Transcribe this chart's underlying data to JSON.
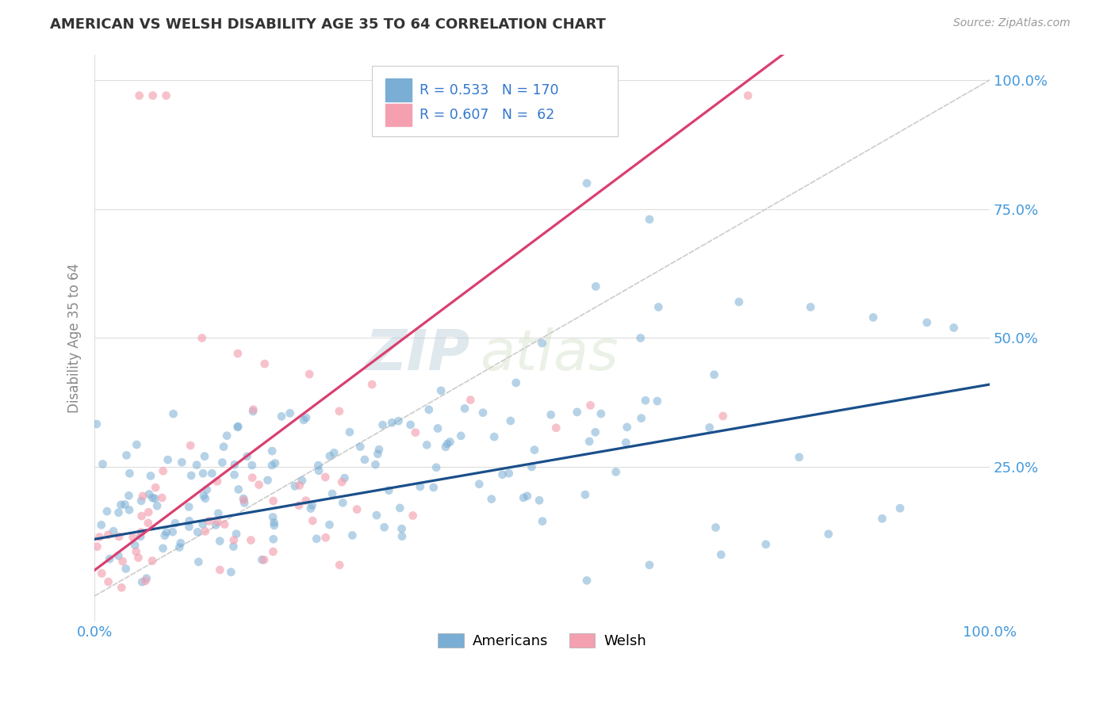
{
  "title": "AMERICAN VS WELSH DISABILITY AGE 35 TO 64 CORRELATION CHART",
  "source": "Source: ZipAtlas.com",
  "ylabel": "Disability Age 35 to 64",
  "americans_R": 0.533,
  "americans_N": 170,
  "welsh_R": 0.607,
  "welsh_N": 62,
  "x_min": 0.0,
  "x_max": 1.0,
  "y_min": -0.05,
  "y_max": 1.05,
  "american_color": "#7aaed4",
  "welsh_color": "#f4a0b0",
  "american_line_color": "#1a4f8a",
  "welsh_line_color": "#d94070",
  "diagonal_color": "#cccccc",
  "grid_color": "#dddddd",
  "title_color": "#333333",
  "tick_color": "#4499DD",
  "background_color": "#ffffff",
  "watermark_color": "#ccdde8",
  "legend_color": "#3377cc",
  "ytick_labels": [
    "100.0%",
    "75.0%",
    "50.0%",
    "25.0%"
  ],
  "ytick_values": [
    1.0,
    0.75,
    0.5,
    0.25
  ],
  "xtick_labels": [
    "0.0%",
    "100.0%"
  ],
  "xtick_values": [
    0.0,
    1.0
  ],
  "bottom_legend_labels": [
    "Americans",
    "Welsh"
  ]
}
